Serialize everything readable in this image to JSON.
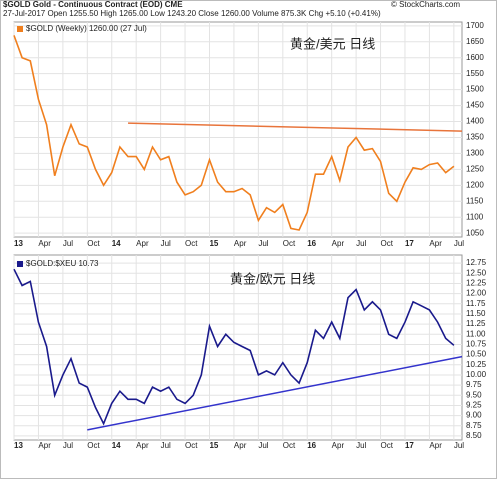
{
  "chart_data": [
    {
      "type": "line",
      "title": "$GOLD Gold - Continuous Contract (EOD) CME",
      "subtitle": "27-Jul-2017 Open 1255.50 High 1265.00 Low 1243.20 Close 1260.00 Volume 875.3K Chg +5.10 (+0.41%)",
      "source": "© StockCharts.com",
      "annotation": "黄金/美元  日线",
      "x": [
        "2013-01",
        "2013-02",
        "2013-03",
        "2013-04",
        "2013-05",
        "2013-06",
        "2013-07",
        "2013-08",
        "2013-09",
        "2013-10",
        "2013-11",
        "2013-12",
        "2014-01",
        "2014-02",
        "2014-03",
        "2014-04",
        "2014-05",
        "2014-06",
        "2014-07",
        "2014-08",
        "2014-09",
        "2014-10",
        "2014-11",
        "2014-12",
        "2015-01",
        "2015-02",
        "2015-03",
        "2015-04",
        "2015-05",
        "2015-06",
        "2015-07",
        "2015-08",
        "2015-09",
        "2015-10",
        "2015-11",
        "2015-12",
        "2016-01",
        "2016-02",
        "2016-03",
        "2016-04",
        "2016-05",
        "2016-06",
        "2016-07",
        "2016-08",
        "2016-09",
        "2016-10",
        "2016-11",
        "2016-12",
        "2017-01",
        "2017-02",
        "2017-03",
        "2017-04",
        "2017-05",
        "2017-06",
        "2017-07"
      ],
      "series": [
        {
          "name": "$GOLD (Weekly) 1260.00 (27 Jul)",
          "color": "#f07f1e",
          "values": [
            1670,
            1600,
            1590,
            1470,
            1390,
            1230,
            1320,
            1390,
            1330,
            1320,
            1250,
            1200,
            1240,
            1320,
            1290,
            1290,
            1250,
            1320,
            1280,
            1290,
            1210,
            1170,
            1180,
            1200,
            1280,
            1210,
            1180,
            1180,
            1190,
            1170,
            1090,
            1130,
            1115,
            1140,
            1065,
            1060,
            1115,
            1235,
            1235,
            1290,
            1215,
            1320,
            1350,
            1310,
            1315,
            1275,
            1175,
            1150,
            1210,
            1255,
            1250,
            1265,
            1270,
            1240,
            1260
          ]
        }
      ],
      "trendline": {
        "x": [
          "2014-03",
          "2017-08"
        ],
        "values": [
          1395,
          1370
        ],
        "color": "#e8743b"
      },
      "xlim": [
        "2013-01",
        "2017-08"
      ],
      "ylim": [
        1038,
        1712
      ],
      "yticks": [
        1050,
        1100,
        1150,
        1200,
        1250,
        1300,
        1350,
        1400,
        1450,
        1500,
        1550,
        1600,
        1650,
        1700
      ],
      "xticks": [
        {
          "value": "2013-01",
          "label": "13"
        },
        {
          "value": "2013-04",
          "label": "Apr"
        },
        {
          "value": "2013-07",
          "label": "Jul"
        },
        {
          "value": "2013-10",
          "label": "Oct"
        },
        {
          "value": "2014-01",
          "label": "14"
        },
        {
          "value": "2014-04",
          "label": "Apr"
        },
        {
          "value": "2014-07",
          "label": "Jul"
        },
        {
          "value": "2014-10",
          "label": "Oct"
        },
        {
          "value": "2015-01",
          "label": "15"
        },
        {
          "value": "2015-04",
          "label": "Apr"
        },
        {
          "value": "2015-07",
          "label": "Jul"
        },
        {
          "value": "2015-10",
          "label": "Oct"
        },
        {
          "value": "2016-01",
          "label": "16"
        },
        {
          "value": "2016-04",
          "label": "Apr"
        },
        {
          "value": "2016-07",
          "label": "Jul"
        },
        {
          "value": "2016-10",
          "label": "Oct"
        },
        {
          "value": "2017-01",
          "label": "17"
        },
        {
          "value": "2017-04",
          "label": "Apr"
        },
        {
          "value": "2017-07",
          "label": "Jul"
        }
      ],
      "grid": true
    },
    {
      "type": "line",
      "annotation": "黄金/欧元  日线",
      "x": [
        "2013-01",
        "2013-02",
        "2013-03",
        "2013-04",
        "2013-05",
        "2013-06",
        "2013-07",
        "2013-08",
        "2013-09",
        "2013-10",
        "2013-11",
        "2013-12",
        "2014-01",
        "2014-02",
        "2014-03",
        "2014-04",
        "2014-05",
        "2014-06",
        "2014-07",
        "2014-08",
        "2014-09",
        "2014-10",
        "2014-11",
        "2014-12",
        "2015-01",
        "2015-02",
        "2015-03",
        "2015-04",
        "2015-05",
        "2015-06",
        "2015-07",
        "2015-08",
        "2015-09",
        "2015-10",
        "2015-11",
        "2015-12",
        "2016-01",
        "2016-02",
        "2016-03",
        "2016-04",
        "2016-05",
        "2016-06",
        "2016-07",
        "2016-08",
        "2016-09",
        "2016-10",
        "2016-11",
        "2016-12",
        "2017-01",
        "2017-02",
        "2017-03",
        "2017-04",
        "2017-05",
        "2017-06",
        "2017-07"
      ],
      "series": [
        {
          "name": "$GOLD:$XEU 10.73",
          "color": "#1a1a8c",
          "values": [
            12.6,
            12.2,
            12.3,
            11.3,
            10.7,
            9.5,
            10.0,
            10.4,
            9.8,
            9.7,
            9.2,
            8.8,
            9.3,
            9.6,
            9.4,
            9.4,
            9.3,
            9.7,
            9.6,
            9.7,
            9.4,
            9.3,
            9.5,
            10.0,
            11.2,
            10.7,
            11.0,
            10.8,
            10.7,
            10.6,
            10.0,
            10.1,
            10.0,
            10.3,
            10.0,
            9.8,
            10.3,
            11.1,
            10.9,
            11.3,
            10.9,
            11.9,
            12.1,
            11.6,
            11.8,
            11.6,
            11.0,
            10.9,
            11.3,
            11.8,
            11.7,
            11.6,
            11.3,
            10.9,
            10.73
          ]
        }
      ],
      "trendline": {
        "x": [
          "2013-10",
          "2017-08"
        ],
        "values": [
          8.65,
          10.45
        ],
        "color": "#3333cc"
      },
      "xlim": [
        "2013-01",
        "2017-08"
      ],
      "ylim": [
        8.4,
        12.95
      ],
      "yticks": [
        {
          "value": 8.5,
          "label": "8.50"
        },
        8.75,
        {
          "value": 9,
          "label": "9.00"
        },
        9.25,
        {
          "value": 9.5,
          "label": "9.50"
        },
        9.75,
        {
          "value": 10,
          "label": "10.00"
        },
        10.25,
        {
          "value": 10.5,
          "label": "10.50"
        },
        10.75,
        {
          "value": 11,
          "label": "11.00"
        },
        11.25,
        {
          "value": 11.5,
          "label": "11.50"
        },
        11.75,
        {
          "value": 12,
          "label": "12.00"
        },
        12.25,
        {
          "value": 12.5,
          "label": "12.50"
        },
        12.75
      ],
      "xticks": [
        {
          "value": "2013-01",
          "label": "13"
        },
        {
          "value": "2013-04",
          "label": "Apr"
        },
        {
          "value": "2013-07",
          "label": "Jul"
        },
        {
          "value": "2013-10",
          "label": "Oct"
        },
        {
          "value": "2014-01",
          "label": "14"
        },
        {
          "value": "2014-04",
          "label": "Apr"
        },
        {
          "value": "2014-07",
          "label": "Jul"
        },
        {
          "value": "2014-10",
          "label": "Oct"
        },
        {
          "value": "2015-01",
          "label": "15"
        },
        {
          "value": "2015-04",
          "label": "Apr"
        },
        {
          "value": "2015-07",
          "label": "Jul"
        },
        {
          "value": "2015-10",
          "label": "Oct"
        },
        {
          "value": "2016-01",
          "label": "16"
        },
        {
          "value": "2016-04",
          "label": "Apr"
        },
        {
          "value": "2016-07",
          "label": "Jul"
        },
        {
          "value": "2016-10",
          "label": "Oct"
        },
        {
          "value": "2017-01",
          "label": "17"
        },
        {
          "value": "2017-04",
          "label": "Apr"
        },
        {
          "value": "2017-07",
          "label": "Jul"
        }
      ],
      "grid": true
    }
  ]
}
